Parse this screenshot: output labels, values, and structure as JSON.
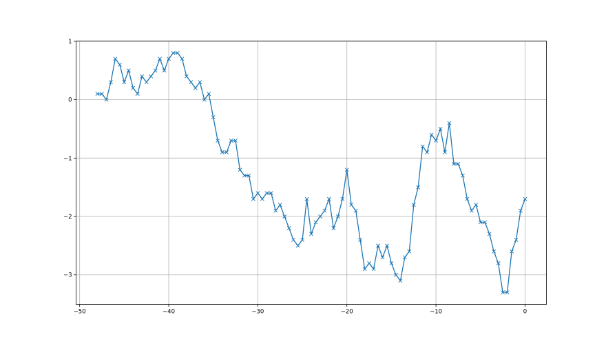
{
  "chart_data": {
    "type": "line",
    "title": "",
    "xlabel": "",
    "ylabel": "",
    "xlim": [
      -50.4,
      2.4
    ],
    "ylim": [
      -3.505,
      1.005
    ],
    "xticks": [
      -50,
      -40,
      -30,
      -20,
      -10,
      0
    ],
    "xtick_labels": [
      "−50",
      "−40",
      "−30",
      "−20",
      "−10",
      "0"
    ],
    "yticks": [
      1,
      0,
      -1,
      -2,
      -3
    ],
    "ytick_labels": [
      "1",
      "0",
      "−1",
      "−2",
      "−3"
    ],
    "grid": true,
    "marker": "x",
    "color": "#1f77b4",
    "series": [
      {
        "x": [
          -48,
          -47.5,
          -47,
          -46.5,
          -46,
          -45.5,
          -45,
          -44.5,
          -44,
          -43.5,
          -43,
          -42.5,
          -42,
          -41.5,
          -41,
          -40.5,
          -40,
          -39.5,
          -39,
          -38.5,
          -38,
          -37.5,
          -37,
          -36.5,
          -36,
          -35.5,
          -35,
          -34.5,
          -34,
          -33.5,
          -33,
          -32.5,
          -32,
          -31.5,
          -31,
          -30.5,
          -30,
          -29.5,
          -29,
          -28.5,
          -28,
          -27.5,
          -27,
          -26.5,
          -26,
          -25.5,
          -25,
          -24.5,
          -24,
          -23.5,
          -23,
          -22.5,
          -22,
          -21.5,
          -21,
          -20.5,
          -20,
          -19.5,
          -19,
          -18.5,
          -18,
          -17.5,
          -17,
          -16.5,
          -16,
          -15.5,
          -15,
          -14.5,
          -14,
          -13.5,
          -13,
          -12.5,
          -12,
          -11.5,
          -11,
          -10.5,
          -10,
          -9.5,
          -9,
          -8.5,
          -8,
          -7.5,
          -7,
          -6.5,
          -6,
          -5.5,
          -5,
          -4.5,
          -4,
          -3.5,
          -3,
          -2.5,
          -2,
          -1.5,
          -1,
          -0.5,
          0
        ],
        "y": [
          0.1,
          0.1,
          0.0,
          0.3,
          0.7,
          0.6,
          0.3,
          0.5,
          0.2,
          0.1,
          0.4,
          0.3,
          0.4,
          0.5,
          0.7,
          0.5,
          0.7,
          0.8,
          0.8,
          0.7,
          0.4,
          0.3,
          0.2,
          0.3,
          0.0,
          0.1,
          -0.3,
          -0.7,
          -0.9,
          -0.9,
          -0.7,
          -0.7,
          -1.2,
          -1.3,
          -1.3,
          -1.7,
          -1.6,
          -1.7,
          -1.6,
          -1.6,
          -1.9,
          -1.8,
          -2.0,
          -2.2,
          -2.4,
          -2.5,
          -2.4,
          -1.7,
          -2.3,
          -2.1,
          -2.0,
          -1.9,
          -1.7,
          -2.2,
          -2.0,
          -1.7,
          -1.2,
          -1.8,
          -1.9,
          -2.4,
          -2.9,
          -2.8,
          -2.9,
          -2.5,
          -2.7,
          -2.5,
          -2.8,
          -3.0,
          -3.1,
          -2.7,
          -2.6,
          -1.8,
          -1.5,
          -0.8,
          -0.9,
          -0.6,
          -0.7,
          -0.5,
          -0.9,
          -0.4,
          -1.1,
          -1.1,
          -1.3,
          -1.7,
          -1.9,
          -1.8,
          -2.1,
          -2.1,
          -2.3,
          -2.6,
          -2.8,
          -3.3,
          -3.3,
          -2.6,
          -2.4,
          -1.9,
          -1.7
        ]
      }
    ]
  }
}
